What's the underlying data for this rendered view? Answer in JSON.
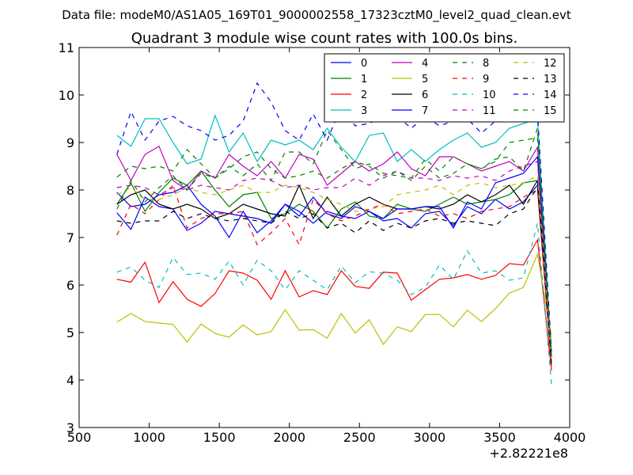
{
  "chart_data": {
    "type": "line",
    "suptitle": "Data file: modeM0/AS1A05_169T01_9000002558_17323cztM0_level2_quad_clean.evt",
    "title": "Quadrant 3 module wise count rates with 100.0s bins.",
    "xlabel": "",
    "ylabel": "",
    "x_offset_label": "+2.82221e8",
    "xlim": [
      500,
      4000
    ],
    "ylim": [
      3,
      11
    ],
    "xticks": [
      500,
      1000,
      1500,
      2000,
      2500,
      3000,
      3500,
      4000
    ],
    "yticks": [
      3,
      4,
      5,
      6,
      7,
      8,
      9,
      10,
      11
    ],
    "legend_position": "top-right",
    "x": [
      770,
      870,
      970,
      1070,
      1170,
      1270,
      1370,
      1470,
      1570,
      1670,
      1770,
      1870,
      1970,
      2070,
      2170,
      2270,
      2370,
      2470,
      2570,
      2670,
      2770,
      2870,
      2970,
      3070,
      3170,
      3270,
      3370,
      3470,
      3570,
      3670,
      3770,
      3870
    ],
    "series": [
      {
        "name": "0",
        "color": "#0000ff",
        "dash": "solid",
        "values": [
          7.52,
          7.17,
          7.85,
          7.65,
          7.6,
          7.15,
          7.3,
          7.55,
          7.5,
          7.45,
          7.4,
          7.3,
          7.7,
          7.55,
          7.3,
          7.55,
          7.45,
          7.4,
          7.55,
          7.35,
          7.4,
          7.2,
          7.5,
          7.55,
          7.25,
          7.65,
          7.5,
          7.8,
          7.6,
          7.75,
          8.1,
          4.4
        ]
      },
      {
        "name": "1",
        "color": "#008000",
        "dash": "solid",
        "values": [
          7.7,
          8.15,
          7.55,
          7.95,
          8.25,
          8.1,
          8.4,
          8.0,
          7.65,
          7.9,
          7.95,
          7.4,
          7.5,
          7.7,
          7.55,
          7.2,
          7.6,
          7.75,
          7.45,
          7.4,
          7.7,
          7.6,
          7.55,
          7.7,
          7.85,
          7.7,
          7.75,
          7.8,
          7.9,
          8.15,
          8.2,
          4.6
        ]
      },
      {
        "name": "2",
        "color": "#ff0000",
        "dash": "solid",
        "values": [
          6.12,
          6.06,
          6.48,
          5.63,
          6.07,
          5.7,
          5.55,
          5.82,
          6.3,
          6.25,
          6.1,
          5.7,
          6.3,
          5.75,
          5.88,
          5.8,
          6.3,
          5.97,
          5.93,
          6.27,
          6.25,
          5.68,
          5.9,
          6.12,
          6.15,
          6.22,
          6.12,
          6.2,
          6.45,
          6.42,
          6.95,
          4.2
        ]
      },
      {
        "name": "3",
        "color": "#00bfbf",
        "dash": "solid",
        "values": [
          9.15,
          8.92,
          9.5,
          9.5,
          9.0,
          8.55,
          8.65,
          9.57,
          8.8,
          9.2,
          8.6,
          9.05,
          8.95,
          9.05,
          8.85,
          9.3,
          8.9,
          8.6,
          9.15,
          9.2,
          8.6,
          8.85,
          8.6,
          8.85,
          9.05,
          9.2,
          8.9,
          9.0,
          9.3,
          9.4,
          9.5,
          4.4
        ]
      },
      {
        "name": "4",
        "color": "#bf00bf",
        "dash": "solid",
        "values": [
          8.75,
          8.2,
          8.75,
          8.92,
          8.2,
          8.0,
          8.4,
          8.25,
          8.75,
          8.5,
          8.3,
          8.6,
          8.25,
          8.75,
          8.65,
          8.1,
          8.35,
          8.6,
          8.4,
          8.55,
          8.8,
          8.45,
          8.3,
          8.7,
          8.7,
          8.55,
          8.4,
          8.5,
          8.6,
          8.4,
          8.9,
          4.3
        ]
      },
      {
        "name": "5",
        "color": "#bfbf00",
        "dash": "solid",
        "values": [
          5.22,
          5.4,
          5.23,
          5.2,
          5.17,
          4.8,
          5.18,
          4.98,
          4.9,
          5.16,
          4.95,
          5.02,
          5.48,
          5.05,
          5.06,
          4.88,
          5.4,
          4.99,
          5.27,
          4.75,
          5.12,
          5.02,
          5.38,
          5.38,
          5.12,
          5.47,
          5.23,
          5.5,
          5.83,
          5.95,
          6.65,
          4.9
        ]
      },
      {
        "name": "6",
        "color": "#000000",
        "dash": "solid",
        "values": [
          7.7,
          7.9,
          8.0,
          7.7,
          7.6,
          7.7,
          7.6,
          7.4,
          7.5,
          7.7,
          7.6,
          7.5,
          7.45,
          8.1,
          7.4,
          7.85,
          7.45,
          7.7,
          7.85,
          7.7,
          7.6,
          7.6,
          7.65,
          7.6,
          7.7,
          7.9,
          7.75,
          7.9,
          8.1,
          7.7,
          8.2,
          4.5
        ]
      },
      {
        "name": "7",
        "color": "#0000ff",
        "dash": "solid",
        "values": [
          7.95,
          7.65,
          7.7,
          7.9,
          7.95,
          8.1,
          7.7,
          7.45,
          7.0,
          7.55,
          7.1,
          7.35,
          7.7,
          7.45,
          7.85,
          7.5,
          7.4,
          7.65,
          7.55,
          7.4,
          7.6,
          7.6,
          7.65,
          7.65,
          7.2,
          7.75,
          7.6,
          8.15,
          8.25,
          8.35,
          8.7,
          4.4
        ]
      },
      {
        "name": "8",
        "color": "#008000",
        "dash": "dashed",
        "values": [
          8.27,
          8.5,
          8.45,
          8.5,
          8.4,
          8.85,
          8.55,
          8.25,
          8.5,
          8.3,
          8.55,
          8.2,
          8.8,
          8.8,
          8.55,
          9.25,
          8.85,
          8.45,
          8.55,
          8.35,
          8.3,
          8.25,
          8.65,
          8.4,
          8.7,
          8.55,
          8.45,
          8.6,
          9.0,
          9.05,
          9.1,
          4.5
        ]
      },
      {
        "name": "9",
        "color": "#ff0000",
        "dash": "dashed",
        "values": [
          7.05,
          7.7,
          7.5,
          7.8,
          8.1,
          7.2,
          7.4,
          7.5,
          7.5,
          7.55,
          6.85,
          7.1,
          7.4,
          6.85,
          7.8,
          7.5,
          7.35,
          7.45,
          7.6,
          7.7,
          7.5,
          7.55,
          7.6,
          7.45,
          7.5,
          7.4,
          7.55,
          7.6,
          7.65,
          7.85,
          8.0,
          4.3
        ]
      },
      {
        "name": "10",
        "color": "#00bfbf",
        "dash": "dashed",
        "values": [
          6.27,
          6.38,
          6.1,
          5.95,
          6.58,
          6.22,
          6.25,
          6.12,
          6.5,
          6.0,
          6.52,
          6.3,
          5.9,
          6.3,
          6.1,
          5.9,
          6.4,
          6.05,
          6.28,
          6.25,
          6.1,
          5.8,
          5.95,
          6.42,
          6.12,
          6.72,
          6.25,
          6.3,
          6.1,
          6.15,
          7.3,
          3.9
        ]
      },
      {
        "name": "11",
        "color": "#bf00bf",
        "dash": "dashed",
        "values": [
          8.05,
          8.1,
          8.05,
          7.9,
          8.05,
          8.0,
          8.1,
          8.05,
          8.0,
          8.2,
          8.25,
          8.2,
          8.05,
          8.1,
          8.0,
          8.05,
          8.05,
          8.25,
          8.1,
          8.3,
          8.4,
          8.25,
          8.25,
          8.2,
          8.3,
          8.25,
          8.3,
          8.2,
          8.4,
          8.5,
          8.6,
          4.4
        ]
      },
      {
        "name": "12",
        "color": "#bfbf00",
        "dash": "dashed",
        "values": [
          7.9,
          8.05,
          7.8,
          7.8,
          7.9,
          8.05,
          7.95,
          7.9,
          8.0,
          8.1,
          7.95,
          7.95,
          8.1,
          8.05,
          7.95,
          7.8,
          7.7,
          7.55,
          7.6,
          7.65,
          7.9,
          7.95,
          8.0,
          8.1,
          7.9,
          8.1,
          8.15,
          8.05,
          8.1,
          8.15,
          8.3,
          4.4
        ]
      },
      {
        "name": "13",
        "color": "#000000",
        "dash": "dashed",
        "values": [
          7.35,
          7.3,
          7.35,
          7.35,
          7.55,
          7.4,
          7.5,
          7.4,
          7.35,
          7.4,
          7.35,
          7.3,
          7.55,
          7.4,
          7.5,
          7.2,
          7.3,
          7.1,
          7.35,
          7.15,
          7.3,
          7.2,
          7.35,
          7.4,
          7.3,
          7.35,
          7.3,
          7.25,
          7.5,
          7.6,
          8.05,
          4.3
        ]
      },
      {
        "name": "14",
        "color": "#0000ff",
        "dash": "dashed",
        "values": [
          8.75,
          9.65,
          9.05,
          9.45,
          9.55,
          9.35,
          9.25,
          9.05,
          9.15,
          9.45,
          10.25,
          9.85,
          9.25,
          9.05,
          9.6,
          9.05,
          9.75,
          9.35,
          9.4,
          9.55,
          9.55,
          9.3,
          9.55,
          9.35,
          9.45,
          9.5,
          9.2,
          9.45,
          10.35,
          10.05,
          9.65,
          4.6
        ]
      },
      {
        "name": "15",
        "color": "#008000",
        "dash": "dashed",
        "values": [
          7.6,
          8.2,
          7.75,
          8.05,
          8.3,
          8.0,
          8.35,
          8.25,
          8.45,
          8.7,
          8.8,
          8.45,
          8.25,
          8.3,
          8.4,
          8.25,
          8.45,
          8.6,
          8.5,
          8.25,
          8.4,
          8.2,
          8.5,
          8.25,
          8.35,
          8.55,
          8.45,
          8.65,
          8.7,
          8.4,
          9.3,
          4.4
        ]
      }
    ]
  }
}
